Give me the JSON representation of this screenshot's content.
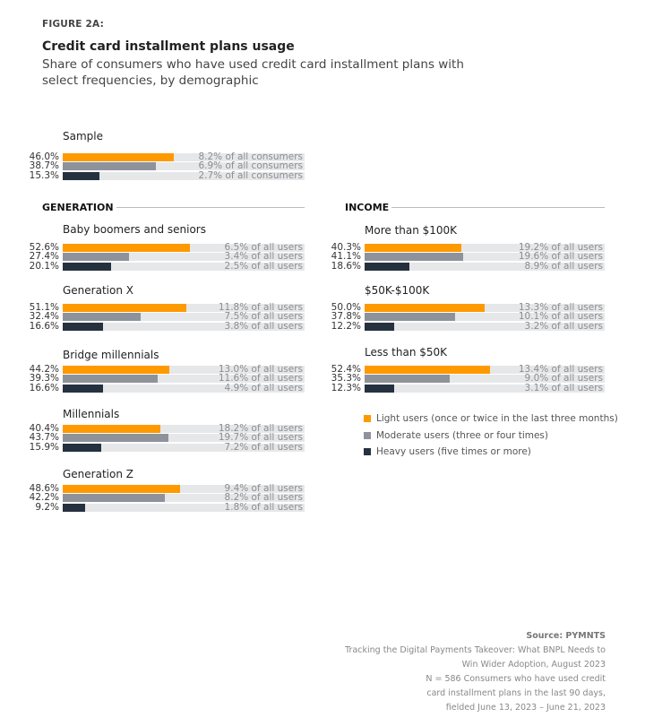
{
  "figure_label": "FIGURE 2A:",
  "title": "Credit card installment plans usage",
  "subtitle": "Share of consumers who have used credit card installment plans with select frequencies, by demographic",
  "colors": {
    "light": "#FF9900",
    "moderate": "#8E939B",
    "heavy": "#263140",
    "track": "#E6E7E8"
  },
  "chart_data": {
    "type": "bar",
    "orientation": "horizontal",
    "xlim": [
      0,
      100
    ],
    "series_names": [
      "Light users (once or twice in the last three months)",
      "Moderate users (three or four times)",
      "Heavy users (five times or more)"
    ],
    "sample": {
      "name": "Sample",
      "values": [
        "46.0%",
        "38.7%",
        "15.3%"
      ],
      "nums": [
        46.0,
        38.7,
        15.3
      ],
      "notes": [
        "8.2% of all consumers",
        "6.9% of all consumers",
        "2.7% of all consumers"
      ]
    },
    "sections": [
      {
        "title": "GENERATION",
        "groups": [
          {
            "name": "Baby boomers and seniors",
            "values": [
              "52.6%",
              "27.4%",
              "20.1%"
            ],
            "nums": [
              52.6,
              27.4,
              20.1
            ],
            "notes": [
              "6.5% of all users",
              "3.4% of all users",
              "2.5% of all users"
            ]
          },
          {
            "name": "Generation X",
            "values": [
              "51.1%",
              "32.4%",
              "16.6%"
            ],
            "nums": [
              51.1,
              32.4,
              16.6
            ],
            "notes": [
              "11.8% of all users",
              "7.5% of all users",
              "3.8% of all users"
            ]
          },
          {
            "name": "Bridge millennials",
            "values": [
              "44.2%",
              "39.3%",
              "16.6%"
            ],
            "nums": [
              44.2,
              39.3,
              16.6
            ],
            "notes": [
              "13.0% of all users",
              "11.6% of all users",
              "4.9% of all users"
            ]
          },
          {
            "name": "Millennials",
            "values": [
              "40.4%",
              "43.7%",
              "15.9%"
            ],
            "nums": [
              40.4,
              43.7,
              15.9
            ],
            "notes": [
              "18.2% of all users",
              "19.7% of all users",
              "7.2% of all users"
            ]
          },
          {
            "name": "Generation Z",
            "values": [
              "48.6%",
              "42.2%",
              "9.2%"
            ],
            "nums": [
              48.6,
              42.2,
              9.2
            ],
            "notes": [
              "9.4% of all users",
              "8.2% of all users",
              "1.8% of all users"
            ]
          }
        ]
      },
      {
        "title": "INCOME",
        "groups": [
          {
            "name": "More than $100K",
            "values": [
              "40.3%",
              "41.1%",
              "18.6%"
            ],
            "nums": [
              40.3,
              41.1,
              18.6
            ],
            "notes": [
              "19.2% of all users",
              "19.6% of all users",
              "8.9% of all users"
            ]
          },
          {
            "name": "$50K-$100K",
            "values": [
              "50.0%",
              "37.8%",
              "12.2%"
            ],
            "nums": [
              50.0,
              37.8,
              12.2
            ],
            "notes": [
              "13.3% of all users",
              "10.1% of all users",
              "3.2% of all users"
            ]
          },
          {
            "name": "Less than $50K",
            "values": [
              "52.4%",
              "35.3%",
              "12.3%"
            ],
            "nums": [
              52.4,
              35.3,
              12.3
            ],
            "notes": [
              "13.4% of all users",
              "9.0% of all users",
              "3.1% of all users"
            ]
          }
        ]
      }
    ],
    "legend_placement": "right-middle"
  },
  "source": {
    "label": "Source: PYMNTS",
    "lines": [
      "Tracking the Digital Payments Takeover: What BNPL Needs to",
      "Win Wider Adoption, August 2023",
      "N = 586 Consumers who have used credit",
      "card installment plans in the last 90 days,",
      "fielded June 13, 2023 – June 21, 2023"
    ]
  }
}
